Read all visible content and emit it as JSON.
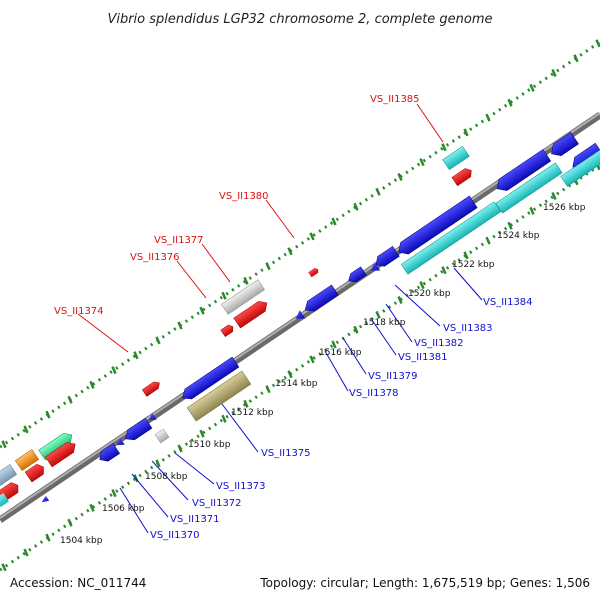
{
  "title": "Vibrio splendidus LGP32 chromosome 2, complete genome",
  "footer": {
    "accession": "Accession: NC_011744",
    "summary": "Topology: circular; Length: 1,675,519 bp; Genes: 1,506"
  },
  "colors": {
    "backbone": "#8c8c8c",
    "tick_line": "#2a8a2a",
    "plus_label": "#e01010",
    "minus_label": "#1010d0",
    "gene_blue": "#1010d8",
    "gene_red": "#e01010",
    "gene_cyan": "#2ccccc",
    "gene_olive": "#b2a864",
    "gene_silver": "#c8c8c8",
    "gene_green": "#2ee890",
    "gene_orange": "#f09010"
  },
  "kbp_labels": [
    "1504 kbp",
    "1506 kbp",
    "1508 kbp",
    "1510 kbp",
    "1512 kbp",
    "1514 kbp",
    "1516 kbp",
    "1518 kbp",
    "1520 kbp",
    "1522 kbp",
    "1524 kbp",
    "1526 kbp"
  ],
  "plus_gene_labels": [
    "VS_II1374",
    "VS_II1376",
    "VS_II1377",
    "VS_II1380",
    "VS_II1385"
  ],
  "minus_gene_labels": [
    "VS_II1370",
    "VS_II1371",
    "VS_II1372",
    "VS_II1373",
    "VS_II1375",
    "VS_II1378",
    "VS_II1379",
    "VS_II1381",
    "VS_II1382",
    "VS_II1383",
    "VS_II1384"
  ]
}
